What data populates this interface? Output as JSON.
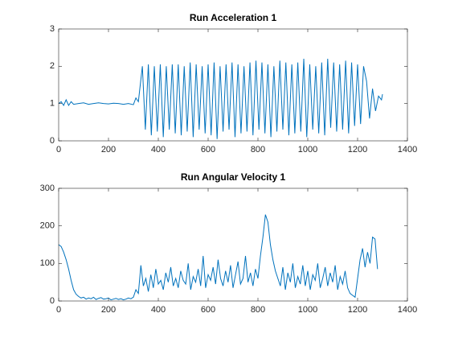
{
  "chart_data": [
    {
      "type": "line",
      "title": "Run Acceleration 1",
      "xlim": [
        0,
        1400
      ],
      "xticks": [
        0,
        200,
        400,
        600,
        800,
        1000,
        1200,
        1400
      ],
      "ylim": [
        0,
        3
      ],
      "yticks": [
        0,
        1,
        2,
        3
      ],
      "series": [
        {
          "color": "#0072bd",
          "x": [
            0,
            10,
            20,
            30,
            40,
            50,
            60,
            80,
            100,
            120,
            140,
            160,
            180,
            200,
            220,
            240,
            260,
            280,
            300,
            310,
            320,
            336,
            348,
            360,
            372,
            384,
            396,
            408,
            420,
            432,
            444,
            456,
            468,
            480,
            492,
            504,
            516,
            528,
            540,
            552,
            564,
            576,
            588,
            600,
            612,
            624,
            636,
            648,
            660,
            672,
            684,
            696,
            708,
            720,
            732,
            744,
            756,
            768,
            780,
            792,
            804,
            816,
            828,
            840,
            852,
            864,
            876,
            888,
            900,
            912,
            924,
            936,
            948,
            960,
            972,
            984,
            996,
            1008,
            1020,
            1032,
            1044,
            1056,
            1068,
            1080,
            1092,
            1104,
            1116,
            1128,
            1140,
            1152,
            1164,
            1176,
            1188,
            1200,
            1212,
            1224,
            1236,
            1248,
            1260,
            1272,
            1284,
            1296,
            1300
          ],
          "values": [
            1.0,
            1.05,
            0.95,
            1.1,
            0.95,
            1.05,
            0.98,
            1.0,
            1.02,
            0.98,
            1.0,
            1.02,
            1.0,
            0.99,
            1.01,
            1.0,
            0.98,
            1.0,
            0.97,
            1.15,
            1.05,
            2.0,
            0.3,
            2.05,
            0.15,
            2.0,
            0.25,
            2.05,
            0.1,
            2.0,
            0.3,
            2.05,
            0.2,
            2.05,
            0.15,
            2.0,
            0.25,
            2.1,
            0.1,
            2.05,
            0.3,
            2.0,
            0.2,
            2.05,
            0.15,
            2.1,
            0.05,
            2.0,
            0.25,
            2.05,
            0.3,
            2.1,
            0.1,
            2.05,
            0.2,
            2.0,
            0.25,
            2.1,
            0.15,
            2.15,
            0.3,
            2.1,
            0.2,
            2.05,
            0.1,
            2.0,
            0.25,
            2.15,
            0.3,
            2.1,
            0.15,
            2.05,
            0.2,
            2.1,
            0.25,
            2.2,
            0.1,
            2.05,
            0.3,
            2.0,
            0.2,
            2.1,
            0.15,
            2.2,
            0.35,
            2.1,
            0.25,
            2.05,
            0.3,
            2.15,
            0.2,
            2.1,
            0.4,
            2.05,
            0.45,
            2.0,
            1.6,
            0.6,
            1.4,
            0.8,
            1.2,
            1.1,
            1.25
          ]
        }
      ]
    },
    {
      "type": "line",
      "title": "Run Angular Velocity 1",
      "xlim": [
        0,
        1400
      ],
      "xticks": [
        0,
        200,
        400,
        600,
        800,
        1000,
        1200,
        1400
      ],
      "ylim": [
        0,
        300
      ],
      "yticks": [
        0,
        100,
        200,
        300
      ],
      "series": [
        {
          "color": "#0072bd",
          "x": [
            0,
            10,
            20,
            30,
            40,
            50,
            60,
            70,
            80,
            90,
            100,
            110,
            120,
            130,
            140,
            150,
            160,
            170,
            180,
            190,
            200,
            210,
            220,
            230,
            240,
            250,
            260,
            270,
            280,
            290,
            300,
            310,
            320,
            330,
            340,
            350,
            360,
            370,
            380,
            390,
            400,
            410,
            420,
            430,
            440,
            450,
            460,
            470,
            480,
            490,
            500,
            510,
            520,
            530,
            540,
            550,
            560,
            570,
            580,
            590,
            600,
            610,
            620,
            630,
            640,
            650,
            660,
            670,
            680,
            690,
            700,
            710,
            720,
            730,
            740,
            750,
            760,
            770,
            780,
            790,
            800,
            810,
            820,
            830,
            840,
            850,
            860,
            870,
            880,
            890,
            900,
            910,
            920,
            930,
            940,
            950,
            960,
            970,
            980,
            990,
            1000,
            1010,
            1020,
            1030,
            1040,
            1050,
            1060,
            1070,
            1080,
            1090,
            1100,
            1110,
            1120,
            1130,
            1140,
            1150,
            1160,
            1170,
            1180,
            1190,
            1200,
            1210,
            1220,
            1230,
            1240,
            1250,
            1260,
            1270,
            1280
          ],
          "values": [
            150,
            145,
            130,
            110,
            85,
            55,
            30,
            18,
            12,
            8,
            10,
            5,
            8,
            6,
            10,
            4,
            7,
            9,
            5,
            6,
            8,
            3,
            5,
            7,
            4,
            6,
            3,
            5,
            8,
            6,
            10,
            30,
            20,
            95,
            40,
            60,
            25,
            70,
            35,
            85,
            45,
            55,
            30,
            75,
            50,
            90,
            40,
            60,
            35,
            80,
            55,
            45,
            100,
            30,
            65,
            50,
            85,
            40,
            120,
            35,
            70,
            55,
            90,
            45,
            110,
            60,
            40,
            80,
            50,
            95,
            35,
            70,
            105,
            45,
            60,
            120,
            50,
            75,
            40,
            85,
            60,
            120,
            170,
            230,
            210,
            150,
            110,
            80,
            60,
            40,
            90,
            30,
            75,
            50,
            100,
            35,
            65,
            45,
            95,
            40,
            80,
            30,
            70,
            55,
            100,
            35,
            60,
            90,
            40,
            75,
            50,
            95,
            30,
            65,
            45,
            80,
            35,
            20,
            15,
            10,
            60,
            110,
            140,
            90,
            130,
            100,
            170,
            165,
            85
          ]
        }
      ]
    }
  ]
}
